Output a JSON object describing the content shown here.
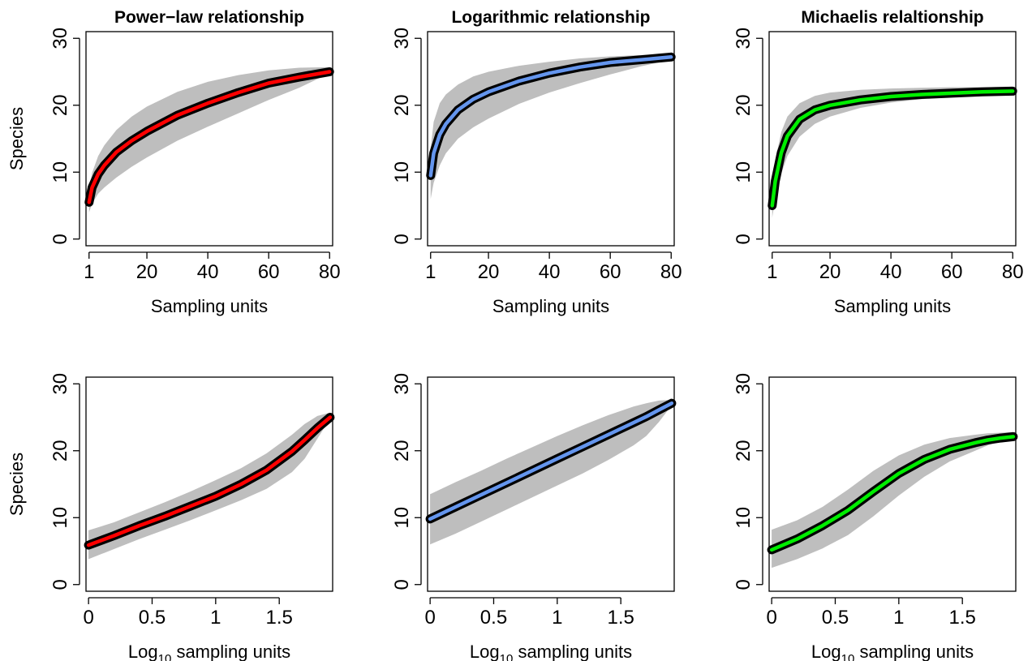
{
  "chart_data": [
    {
      "type": "line",
      "title": "Power−law relationship",
      "xlabel": "Sampling units",
      "ylabel": "Species",
      "x_scale": "linear",
      "xlim": [
        0,
        81
      ],
      "ylim": [
        -1,
        31
      ],
      "x_ticks": [
        "1",
        "20",
        "40",
        "60",
        "80"
      ],
      "x_tick_values": [
        1,
        20,
        40,
        60,
        80
      ],
      "y_ticks": [
        "0",
        "10",
        "20",
        "30"
      ],
      "y_tick_values": [
        0,
        10,
        20,
        30
      ],
      "grid": false,
      "color": "#ff0000",
      "series": [
        {
          "x": [
            1,
            2,
            4,
            6,
            10,
            15,
            20,
            30,
            40,
            50,
            60,
            70,
            80
          ],
          "y": [
            5.5,
            7.7,
            9.7,
            11.0,
            13.0,
            14.7,
            16.1,
            18.5,
            20.3,
            21.9,
            23.3,
            24.2,
            25.0
          ],
          "band_lower": [
            4.0,
            5.3,
            6.8,
            7.7,
            9.2,
            10.8,
            12.2,
            14.7,
            16.8,
            18.8,
            20.8,
            22.6,
            24.8
          ],
          "band_upper": [
            7.5,
            9.9,
            12.4,
            14.0,
            16.3,
            18.3,
            19.8,
            22.0,
            23.5,
            24.5,
            25.2,
            25.6,
            25.7
          ]
        }
      ]
    },
    {
      "type": "line",
      "title": "Logarithmic relationship",
      "xlabel": "Sampling units",
      "ylabel": "",
      "x_scale": "linear",
      "xlim": [
        0,
        81
      ],
      "ylim": [
        -1,
        31
      ],
      "x_ticks": [
        "1",
        "20",
        "40",
        "60",
        "80"
      ],
      "x_tick_values": [
        1,
        20,
        40,
        60,
        80
      ],
      "y_ticks": [
        "0",
        "10",
        "20",
        "30"
      ],
      "y_tick_values": [
        0,
        10,
        20,
        30
      ],
      "grid": false,
      "color": "#6495ed",
      "series": [
        {
          "x": [
            1,
            2,
            4,
            6,
            10,
            15,
            20,
            30,
            40,
            50,
            60,
            70,
            80
          ],
          "y": [
            9.5,
            12.8,
            15.6,
            17.2,
            19.3,
            20.9,
            22.0,
            23.6,
            24.8,
            25.7,
            26.4,
            26.8,
            27.2
          ],
          "band_lower": [
            6.0,
            8.4,
            11.0,
            12.8,
            15.0,
            16.7,
            18.0,
            20.2,
            21.9,
            23.3,
            24.6,
            25.8,
            26.8
          ],
          "band_upper": [
            13.5,
            17.5,
            20.3,
            21.6,
            23.1,
            24.3,
            25.0,
            25.9,
            26.5,
            27.0,
            27.3,
            27.5,
            27.6
          ]
        }
      ]
    },
    {
      "type": "line",
      "title": "Michaelis relaltionship",
      "xlabel": "Sampling units",
      "ylabel": "",
      "x_scale": "linear",
      "xlim": [
        0,
        81
      ],
      "ylim": [
        -1,
        31
      ],
      "x_ticks": [
        "1",
        "20",
        "40",
        "60",
        "80"
      ],
      "x_tick_values": [
        1,
        20,
        40,
        60,
        80
      ],
      "y_ticks": [
        "0",
        "10",
        "20",
        "30"
      ],
      "y_tick_values": [
        0,
        10,
        20,
        30
      ],
      "grid": false,
      "color": "#00ee00",
      "series": [
        {
          "x": [
            1,
            2,
            4,
            6,
            10,
            15,
            20,
            30,
            40,
            50,
            60,
            70,
            80
          ],
          "y": [
            5.0,
            8.6,
            12.9,
            15.4,
            17.9,
            19.3,
            20.0,
            20.8,
            21.3,
            21.6,
            21.8,
            22.0,
            22.1
          ],
          "band_lower": [
            3.2,
            6.0,
            9.8,
            12.4,
            15.3,
            17.2,
            18.3,
            19.6,
            20.4,
            20.9,
            21.3,
            21.6,
            21.9
          ],
          "band_upper": [
            7.5,
            11.8,
            16.0,
            18.3,
            20.3,
            21.4,
            21.9,
            22.3,
            22.5,
            22.6,
            22.7,
            22.7,
            22.8
          ]
        }
      ]
    },
    {
      "type": "line",
      "title": "",
      "xlabel": "Log10 sampling units",
      "ylabel": "Species",
      "x_scale": "log10",
      "xlim": [
        -0.02,
        1.92
      ],
      "ylim": [
        -1,
        31
      ],
      "x_ticks": [
        "0",
        "0.5",
        "1",
        "1.5"
      ],
      "x_tick_values": [
        0,
        0.5,
        1,
        1.5
      ],
      "y_ticks": [
        "0",
        "10",
        "20",
        "30"
      ],
      "y_tick_values": [
        0,
        10,
        20,
        30
      ],
      "grid": false,
      "color": "#ff0000",
      "series": [
        {
          "x": [
            0,
            0.2,
            0.4,
            0.6,
            0.8,
            1.0,
            1.2,
            1.4,
            1.6,
            1.7,
            1.8,
            1.9
          ],
          "y": [
            5.9,
            7.3,
            8.8,
            10.2,
            11.7,
            13.2,
            15.0,
            17.1,
            19.9,
            21.6,
            23.4,
            25.0
          ],
          "band_lower": [
            3.8,
            5.3,
            6.8,
            8.2,
            9.6,
            11.1,
            12.6,
            14.3,
            16.8,
            18.8,
            21.8,
            24.8
          ],
          "band_upper": [
            8.1,
            9.3,
            10.8,
            12.3,
            13.9,
            15.6,
            17.4,
            19.6,
            22.4,
            24.0,
            25.2,
            25.7
          ]
        }
      ]
    },
    {
      "type": "line",
      "title": "",
      "xlabel": "Log10 sampling units",
      "ylabel": "",
      "x_scale": "log10",
      "xlim": [
        -0.02,
        1.92
      ],
      "ylim": [
        -1,
        31
      ],
      "x_ticks": [
        "0",
        "0.5",
        "1",
        "1.5"
      ],
      "x_tick_values": [
        0,
        0.5,
        1,
        1.5
      ],
      "y_ticks": [
        "0",
        "10",
        "20",
        "30"
      ],
      "y_tick_values": [
        0,
        10,
        20,
        30
      ],
      "grid": false,
      "color": "#6495ed",
      "series": [
        {
          "x": [
            0,
            0.2,
            0.4,
            0.6,
            0.8,
            1.0,
            1.2,
            1.4,
            1.6,
            1.7,
            1.8,
            1.9
          ],
          "y": [
            9.8,
            11.6,
            13.4,
            15.2,
            17.0,
            18.8,
            20.6,
            22.4,
            24.2,
            25.1,
            26.1,
            27.1
          ],
          "band_lower": [
            6.0,
            7.6,
            9.4,
            11.2,
            13.0,
            14.8,
            16.6,
            18.6,
            20.8,
            22.2,
            24.3,
            26.8
          ],
          "band_upper": [
            13.5,
            15.3,
            17.0,
            18.8,
            20.5,
            22.2,
            23.8,
            25.3,
            26.6,
            27.1,
            27.5,
            27.6
          ]
        }
      ]
    },
    {
      "type": "line",
      "title": "",
      "xlabel": "Log10 sampling units",
      "ylabel": "",
      "x_scale": "log10",
      "xlim": [
        -0.02,
        1.92
      ],
      "ylim": [
        -1,
        31
      ],
      "x_ticks": [
        "0",
        "0.5",
        "1",
        "1.5"
      ],
      "x_tick_values": [
        0,
        0.5,
        1,
        1.5
      ],
      "y_ticks": [
        "0",
        "10",
        "20",
        "30"
      ],
      "y_tick_values": [
        0,
        10,
        20,
        30
      ],
      "grid": false,
      "color": "#00ee00",
      "series": [
        {
          "x": [
            0,
            0.2,
            0.4,
            0.6,
            0.8,
            1.0,
            1.2,
            1.4,
            1.6,
            1.7,
            1.8,
            1.9
          ],
          "y": [
            5.2,
            6.8,
            8.8,
            11.1,
            13.9,
            16.6,
            18.7,
            20.2,
            21.2,
            21.6,
            21.9,
            22.1
          ],
          "band_lower": [
            2.5,
            3.8,
            5.4,
            7.4,
            10.2,
            13.3,
            16.1,
            18.4,
            20.0,
            20.8,
            21.4,
            21.9
          ],
          "band_upper": [
            8.2,
            9.6,
            11.6,
            14.2,
            17.0,
            19.3,
            20.9,
            21.9,
            22.4,
            22.6,
            22.7,
            22.8
          ]
        }
      ]
    }
  ]
}
